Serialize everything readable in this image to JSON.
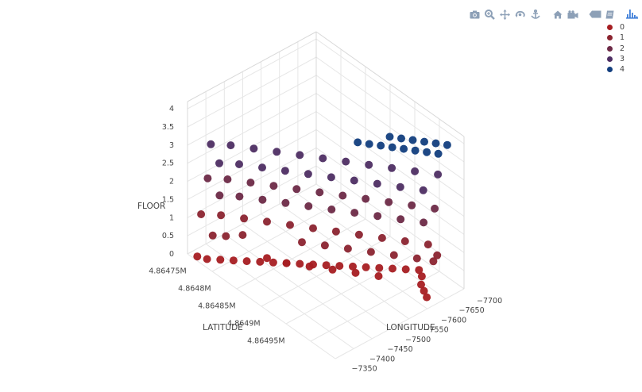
{
  "modebar": {
    "icons": [
      "camera-icon",
      "zoom-icon",
      "pan-icon",
      "orbit-icon",
      "turntable-icon",
      "home-icon",
      "camera-view-icon",
      "hover-tag-icon",
      "spike-icon",
      "plotly-logo-icon"
    ],
    "icon_color": "#8da0b7",
    "logo_color": "#3f7fd9"
  },
  "chart_data": {
    "type": "scatter3d",
    "xlabel": "LATITUDE",
    "ylabel": "LONGITUDE",
    "zlabel": "FLOOR",
    "x_ticks": [
      "4.86475M",
      "4.8648M",
      "4.86485M",
      "4.8649M",
      "4.86495M"
    ],
    "y_ticks": [
      "−7700",
      "−7650",
      "−7600",
      "−7550",
      "−7500",
      "−7450",
      "−7400",
      "−7350"
    ],
    "z_ticks": [
      "0",
      "0.5",
      "1",
      "1.5",
      "2",
      "2.5",
      "3",
      "3.5",
      "4"
    ],
    "xlim": [
      4864740,
      4864975
    ],
    "ylim": [
      -7700,
      -7330
    ],
    "zlim": [
      0,
      4.2
    ],
    "legend": {
      "position": "top-right",
      "entries": [
        {
          "name": "0",
          "color": "#a61e22"
        },
        {
          "name": "1",
          "color": "#8b2430"
        },
        {
          "name": "2",
          "color": "#6d2a47"
        },
        {
          "name": "3",
          "color": "#4e2e63"
        },
        {
          "name": "4",
          "color": "#123e7e"
        }
      ]
    },
    "series": [
      {
        "name": "0",
        "floor": 0,
        "color": "#a61e22",
        "points": [
          [
            4864920,
            -7360
          ],
          [
            4864910,
            -7380
          ],
          [
            4864900,
            -7400
          ],
          [
            4864890,
            -7420
          ],
          [
            4864880,
            -7440
          ],
          [
            4864870,
            -7460
          ],
          [
            4864860,
            -7480
          ],
          [
            4864850,
            -7500
          ],
          [
            4864840,
            -7520
          ],
          [
            4864830,
            -7540
          ],
          [
            4864820,
            -7560
          ],
          [
            4864810,
            -7580
          ],
          [
            4864800,
            -7600
          ],
          [
            4864790,
            -7620
          ],
          [
            4864780,
            -7640
          ],
          [
            4864770,
            -7660
          ],
          [
            4864760,
            -7680
          ],
          [
            4864750,
            -7690
          ],
          [
            4864930,
            -7370
          ],
          [
            4864940,
            -7390
          ],
          [
            4864950,
            -7400
          ],
          [
            4864960,
            -7410
          ],
          [
            4864900,
            -7440
          ],
          [
            4864880,
            -7470
          ],
          [
            4864860,
            -7500
          ],
          [
            4864840,
            -7530
          ],
          [
            4864820,
            -7560
          ],
          [
            4864800,
            -7580
          ]
        ]
      },
      {
        "name": "1",
        "floor": 1,
        "color": "#8b2430",
        "points": [
          [
            4864940,
            -7370
          ],
          [
            4864920,
            -7400
          ],
          [
            4864900,
            -7430
          ],
          [
            4864880,
            -7460
          ],
          [
            4864860,
            -7490
          ],
          [
            4864840,
            -7520
          ],
          [
            4864820,
            -7550
          ],
          [
            4864800,
            -7580
          ],
          [
            4864780,
            -7610
          ],
          [
            4864760,
            -7640
          ],
          [
            4864745,
            -7670
          ],
          [
            4864950,
            -7420
          ],
          [
            4864930,
            -7450
          ],
          [
            4864910,
            -7480
          ],
          [
            4864890,
            -7510
          ],
          [
            4864870,
            -7540
          ],
          [
            4864850,
            -7570
          ],
          [
            4864960,
            -7380
          ],
          [
            4864965,
            -7400
          ],
          [
            4864800,
            -7650
          ],
          [
            4864790,
            -7680
          ],
          [
            4864780,
            -7700
          ]
        ]
      },
      {
        "name": "2",
        "floor": 2,
        "color": "#6d2a47",
        "points": [
          [
            4864945,
            -7360
          ],
          [
            4864925,
            -7390
          ],
          [
            4864905,
            -7420
          ],
          [
            4864885,
            -7450
          ],
          [
            4864865,
            -7480
          ],
          [
            4864845,
            -7510
          ],
          [
            4864825,
            -7540
          ],
          [
            4864805,
            -7570
          ],
          [
            4864785,
            -7600
          ],
          [
            4864765,
            -7630
          ],
          [
            4864750,
            -7660
          ],
          [
            4864955,
            -7410
          ],
          [
            4864935,
            -7440
          ],
          [
            4864915,
            -7470
          ],
          [
            4864895,
            -7500
          ],
          [
            4864875,
            -7530
          ],
          [
            4864855,
            -7560
          ],
          [
            4864835,
            -7590
          ],
          [
            4864815,
            -7620
          ],
          [
            4864795,
            -7650
          ],
          [
            4864780,
            -7680
          ]
        ]
      },
      {
        "name": "3",
        "floor": 3,
        "color": "#4e2e63",
        "points": [
          [
            4864950,
            -7360
          ],
          [
            4864930,
            -7390
          ],
          [
            4864910,
            -7420
          ],
          [
            4864890,
            -7450
          ],
          [
            4864870,
            -7480
          ],
          [
            4864850,
            -7510
          ],
          [
            4864830,
            -7540
          ],
          [
            4864810,
            -7570
          ],
          [
            4864790,
            -7600
          ],
          [
            4864770,
            -7630
          ],
          [
            4864755,
            -7660
          ],
          [
            4864960,
            -7420
          ],
          [
            4864940,
            -7450
          ],
          [
            4864920,
            -7480
          ],
          [
            4864900,
            -7510
          ],
          [
            4864880,
            -7540
          ],
          [
            4864860,
            -7570
          ],
          [
            4864840,
            -7600
          ],
          [
            4864820,
            -7630
          ],
          [
            4864800,
            -7660
          ],
          [
            4864785,
            -7690
          ]
        ]
      },
      {
        "name": "4",
        "floor": 4,
        "color": "#123e7e",
        "points": [
          [
            4864965,
            -7360
          ],
          [
            4864955,
            -7375
          ],
          [
            4864945,
            -7390
          ],
          [
            4864935,
            -7405
          ],
          [
            4864925,
            -7420
          ],
          [
            4864915,
            -7435
          ],
          [
            4864970,
            -7395
          ],
          [
            4864960,
            -7410
          ],
          [
            4864950,
            -7425
          ],
          [
            4864940,
            -7440
          ],
          [
            4864930,
            -7455
          ],
          [
            4864920,
            -7470
          ],
          [
            4864910,
            -7485
          ],
          [
            4864900,
            -7500
          ]
        ]
      }
    ]
  }
}
